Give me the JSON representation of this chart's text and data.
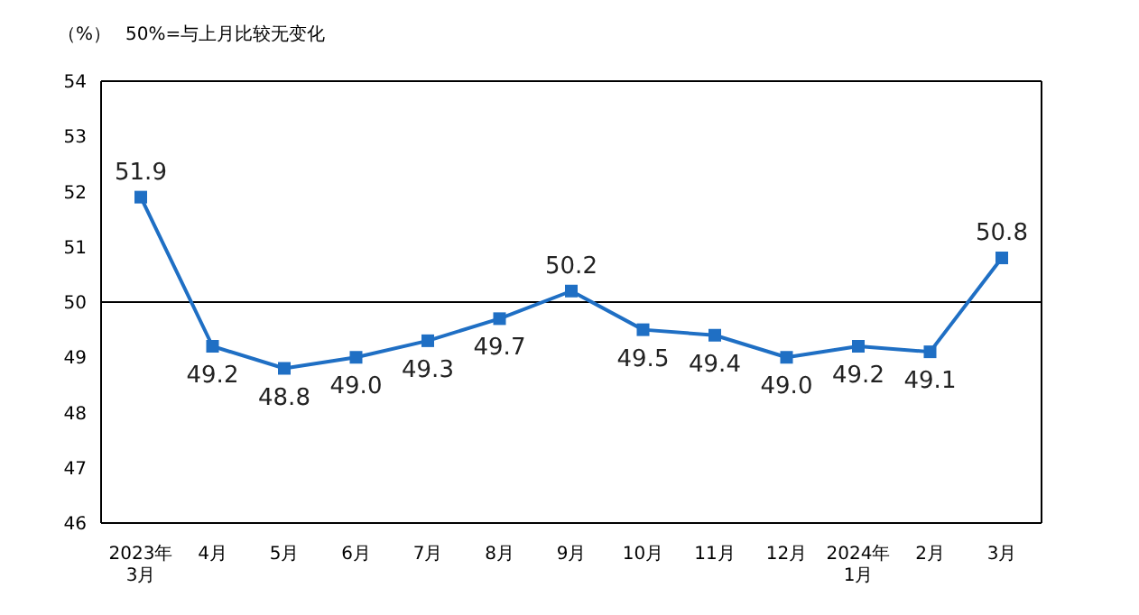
{
  "chart_data": {
    "type": "line",
    "annotations": [
      "（%）",
      "50%=与上月比较无变化"
    ],
    "categories": [
      "2023年\n3月",
      "4月",
      "5月",
      "6月",
      "7月",
      "8月",
      "9月",
      "10月",
      "11月",
      "12月",
      "2024年\n1月",
      "2月",
      "3月"
    ],
    "series": [
      {
        "color": "#1f6fc4",
        "values": [
          51.9,
          49.2,
          48.8,
          49.0,
          49.3,
          49.7,
          50.2,
          49.5,
          49.4,
          49.0,
          49.2,
          49.1,
          50.8
        ],
        "value_labels": [
          "51.9",
          "49.2",
          "48.8",
          "49.0",
          "49.3",
          "49.7",
          "50.2",
          "49.5",
          "49.4",
          "49.0",
          "49.2",
          "49.1",
          "50.8"
        ]
      }
    ],
    "ylim": [
      46,
      54
    ],
    "yticks": [
      46,
      47,
      48,
      49,
      50,
      51,
      52,
      53,
      54
    ],
    "ref_lines": [
      {
        "axis": "y",
        "value": 50,
        "color": "#000000"
      }
    ],
    "marker": "square",
    "line_style": "solid",
    "grid": false,
    "legend": false
  }
}
